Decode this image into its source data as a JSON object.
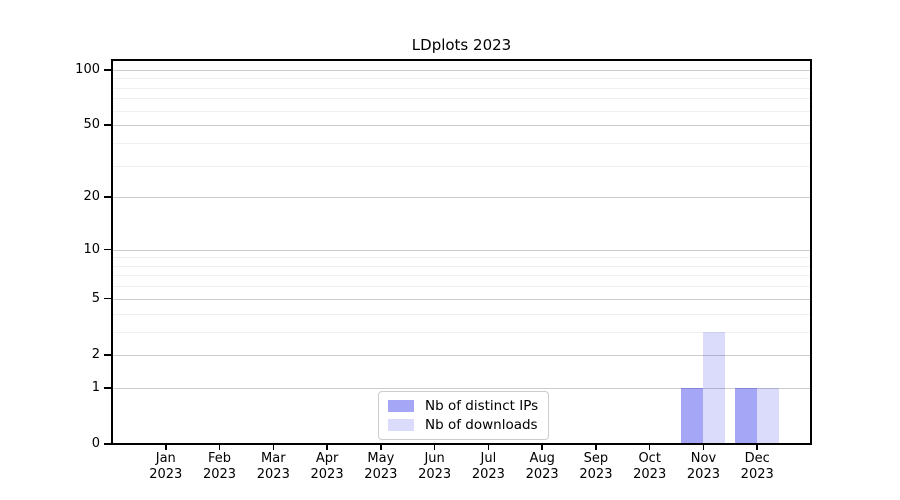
{
  "figure": {
    "title": "LDplots 2023"
  },
  "chart_data": {
    "type": "bar",
    "title": "LDplots 2023",
    "categories": [
      "Jan",
      "Feb",
      "Mar",
      "Apr",
      "May",
      "Jun",
      "Jul",
      "Aug",
      "Sep",
      "Oct",
      "Nov",
      "Dec"
    ],
    "year_label": "2023",
    "series": [
      {
        "name": "Nb of distinct IPs",
        "color": "rgba(0,0,230,0.35)",
        "values": [
          0,
          0,
          0,
          0,
          0,
          0,
          0,
          0,
          0,
          0,
          1,
          1
        ]
      },
      {
        "name": "Nb of downloads",
        "color": "rgba(0,0,230,0.14)",
        "values": [
          0,
          0,
          0,
          0,
          0,
          0,
          0,
          0,
          0,
          0,
          3,
          1
        ]
      }
    ],
    "yscale": "log1p",
    "yticks": [
      0,
      1,
      2,
      5,
      10,
      20,
      50,
      100
    ],
    "yticks_minor": [
      3,
      4,
      6,
      7,
      8,
      9,
      30,
      40,
      60,
      70,
      80,
      90
    ],
    "ylim": [
      0,
      113
    ],
    "xlabel": "",
    "ylabel": "",
    "grid": true,
    "legend_position": "lower center",
    "colors": {
      "major_grid": "#cccccc",
      "minor_grid": "#f0f0f0",
      "axis": "#000000",
      "background": "#ffffff",
      "text": "#000000"
    }
  }
}
